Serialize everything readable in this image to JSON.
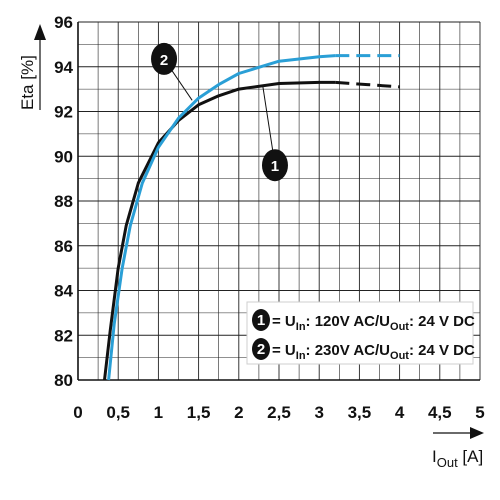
{
  "chart_data": {
    "type": "line",
    "xlabel": {
      "main": "I",
      "sub": "Out",
      "unit": "[A]"
    },
    "ylabel": "Eta [%]",
    "xlim": [
      0,
      5
    ],
    "ylim": [
      80,
      96
    ],
    "x_ticks": [
      {
        "v": 0,
        "label": "0"
      },
      {
        "v": 0.5,
        "label": "0,5"
      },
      {
        "v": 1,
        "label": "1"
      },
      {
        "v": 1.5,
        "label": "1,5"
      },
      {
        "v": 2,
        "label": "2"
      },
      {
        "v": 2.5,
        "label": "2,5"
      },
      {
        "v": 3,
        "label": "3"
      },
      {
        "v": 3.5,
        "label": "3,5"
      },
      {
        "v": 4,
        "label": "4"
      },
      {
        "v": 4.5,
        "label": "4,5"
      },
      {
        "v": 5,
        "label": "5"
      }
    ],
    "y_ticks": [
      {
        "v": 80,
        "label": "80"
      },
      {
        "v": 82,
        "label": "82"
      },
      {
        "v": 84,
        "label": "84"
      },
      {
        "v": 86,
        "label": "86"
      },
      {
        "v": 88,
        "label": "88"
      },
      {
        "v": 90,
        "label": "90"
      },
      {
        "v": 92,
        "label": "92"
      },
      {
        "v": 94,
        "label": "94"
      },
      {
        "v": 96,
        "label": "96"
      }
    ],
    "grid": true,
    "series": [
      {
        "id": "1",
        "color": "#111111",
        "solid_points": [
          [
            0.33,
            80
          ],
          [
            0.4,
            82.2
          ],
          [
            0.5,
            85
          ],
          [
            0.6,
            86.9
          ],
          [
            0.75,
            88.8
          ],
          [
            1,
            90.6
          ],
          [
            1.25,
            91.6
          ],
          [
            1.5,
            92.3
          ],
          [
            1.75,
            92.7
          ],
          [
            2,
            93
          ],
          [
            2.5,
            93.25
          ],
          [
            3,
            93.3
          ],
          [
            3.2,
            93.3
          ]
        ],
        "dashed_points": [
          [
            3.2,
            93.3
          ],
          [
            3.6,
            93.2
          ],
          [
            4,
            93.1
          ]
        ]
      },
      {
        "id": "2",
        "color": "#2a9fd6",
        "solid_points": [
          [
            0.38,
            80
          ],
          [
            0.45,
            82.5
          ],
          [
            0.55,
            85
          ],
          [
            0.65,
            86.9
          ],
          [
            0.8,
            88.8
          ],
          [
            1,
            90.4
          ],
          [
            1.25,
            91.7
          ],
          [
            1.5,
            92.6
          ],
          [
            1.75,
            93.2
          ],
          [
            2,
            93.7
          ],
          [
            2.5,
            94.25
          ],
          [
            3,
            94.45
          ],
          [
            3.2,
            94.5
          ]
        ],
        "dashed_points": [
          [
            3.2,
            94.5
          ],
          [
            3.6,
            94.5
          ],
          [
            4,
            94.5
          ]
        ]
      }
    ],
    "callouts": [
      {
        "id": "2",
        "label": "2",
        "anchor": [
          1.42,
          92.5
        ],
        "at": [
          1.07,
          94.35
        ]
      },
      {
        "id": "1",
        "label": "1",
        "anchor": [
          2.3,
          93.1
        ],
        "at": [
          2.45,
          89.6
        ]
      }
    ],
    "legend": {
      "placement": "bottom-right",
      "entries": [
        {
          "badge": "1",
          "eq": "= U",
          "sub1": "In",
          "mid": ": 120V AC/U",
          "sub2": "Out",
          "tail": ": 24 V DC"
        },
        {
          "badge": "2",
          "eq": "= U",
          "sub1": "In",
          "mid": ": 230V AC/U",
          "sub2": "Out",
          "tail": ": 24 V DC"
        }
      ]
    }
  }
}
